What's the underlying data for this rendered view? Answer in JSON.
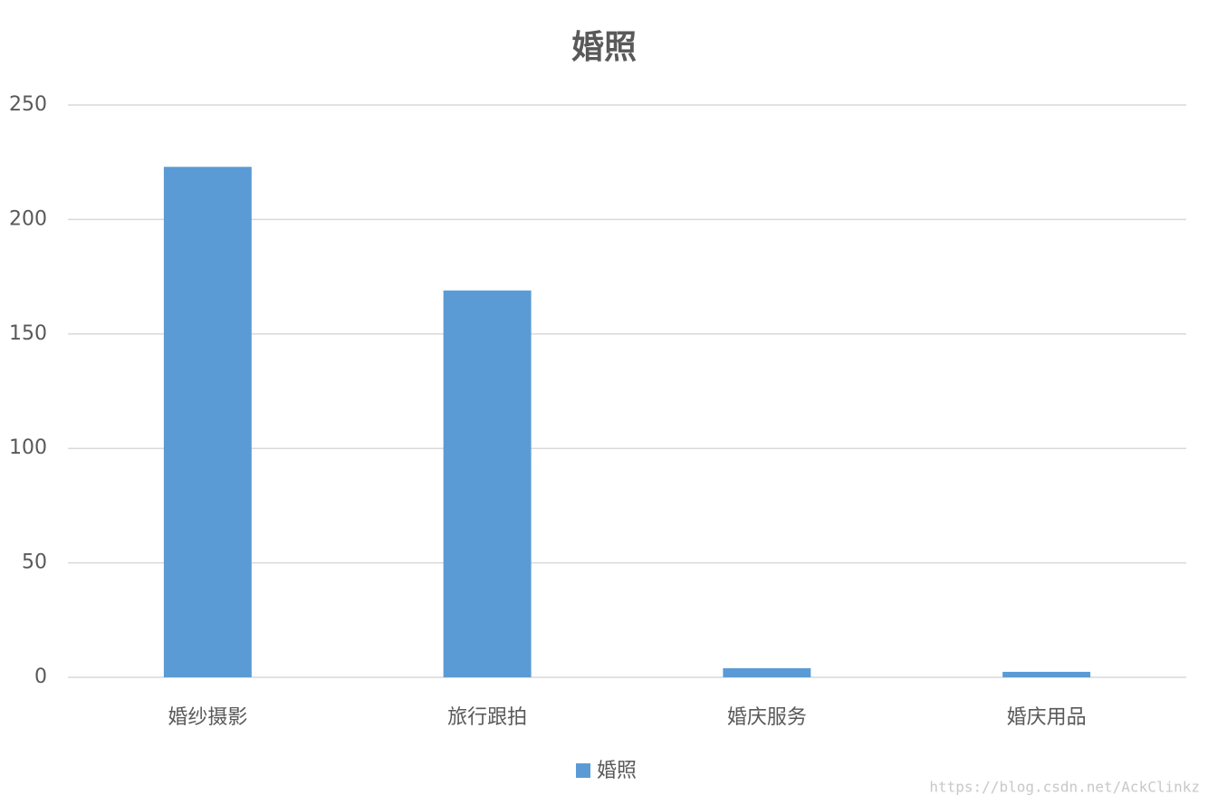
{
  "chart_data": {
    "type": "bar",
    "title": "婚照",
    "categories": [
      "婚纱摄影",
      "旅行跟拍",
      "婚庆服务",
      "婚庆用品"
    ],
    "series": [
      {
        "name": "婚照",
        "color": "#5b9bd5",
        "values": [
          223,
          169,
          4,
          2.4
        ]
      }
    ],
    "ylim": [
      0,
      250
    ],
    "yticks": [
      0,
      50,
      100,
      150,
      200,
      250
    ],
    "grid": true,
    "legend": "bottom",
    "watermark": "https://blog.csdn.net/AckClinkz"
  }
}
